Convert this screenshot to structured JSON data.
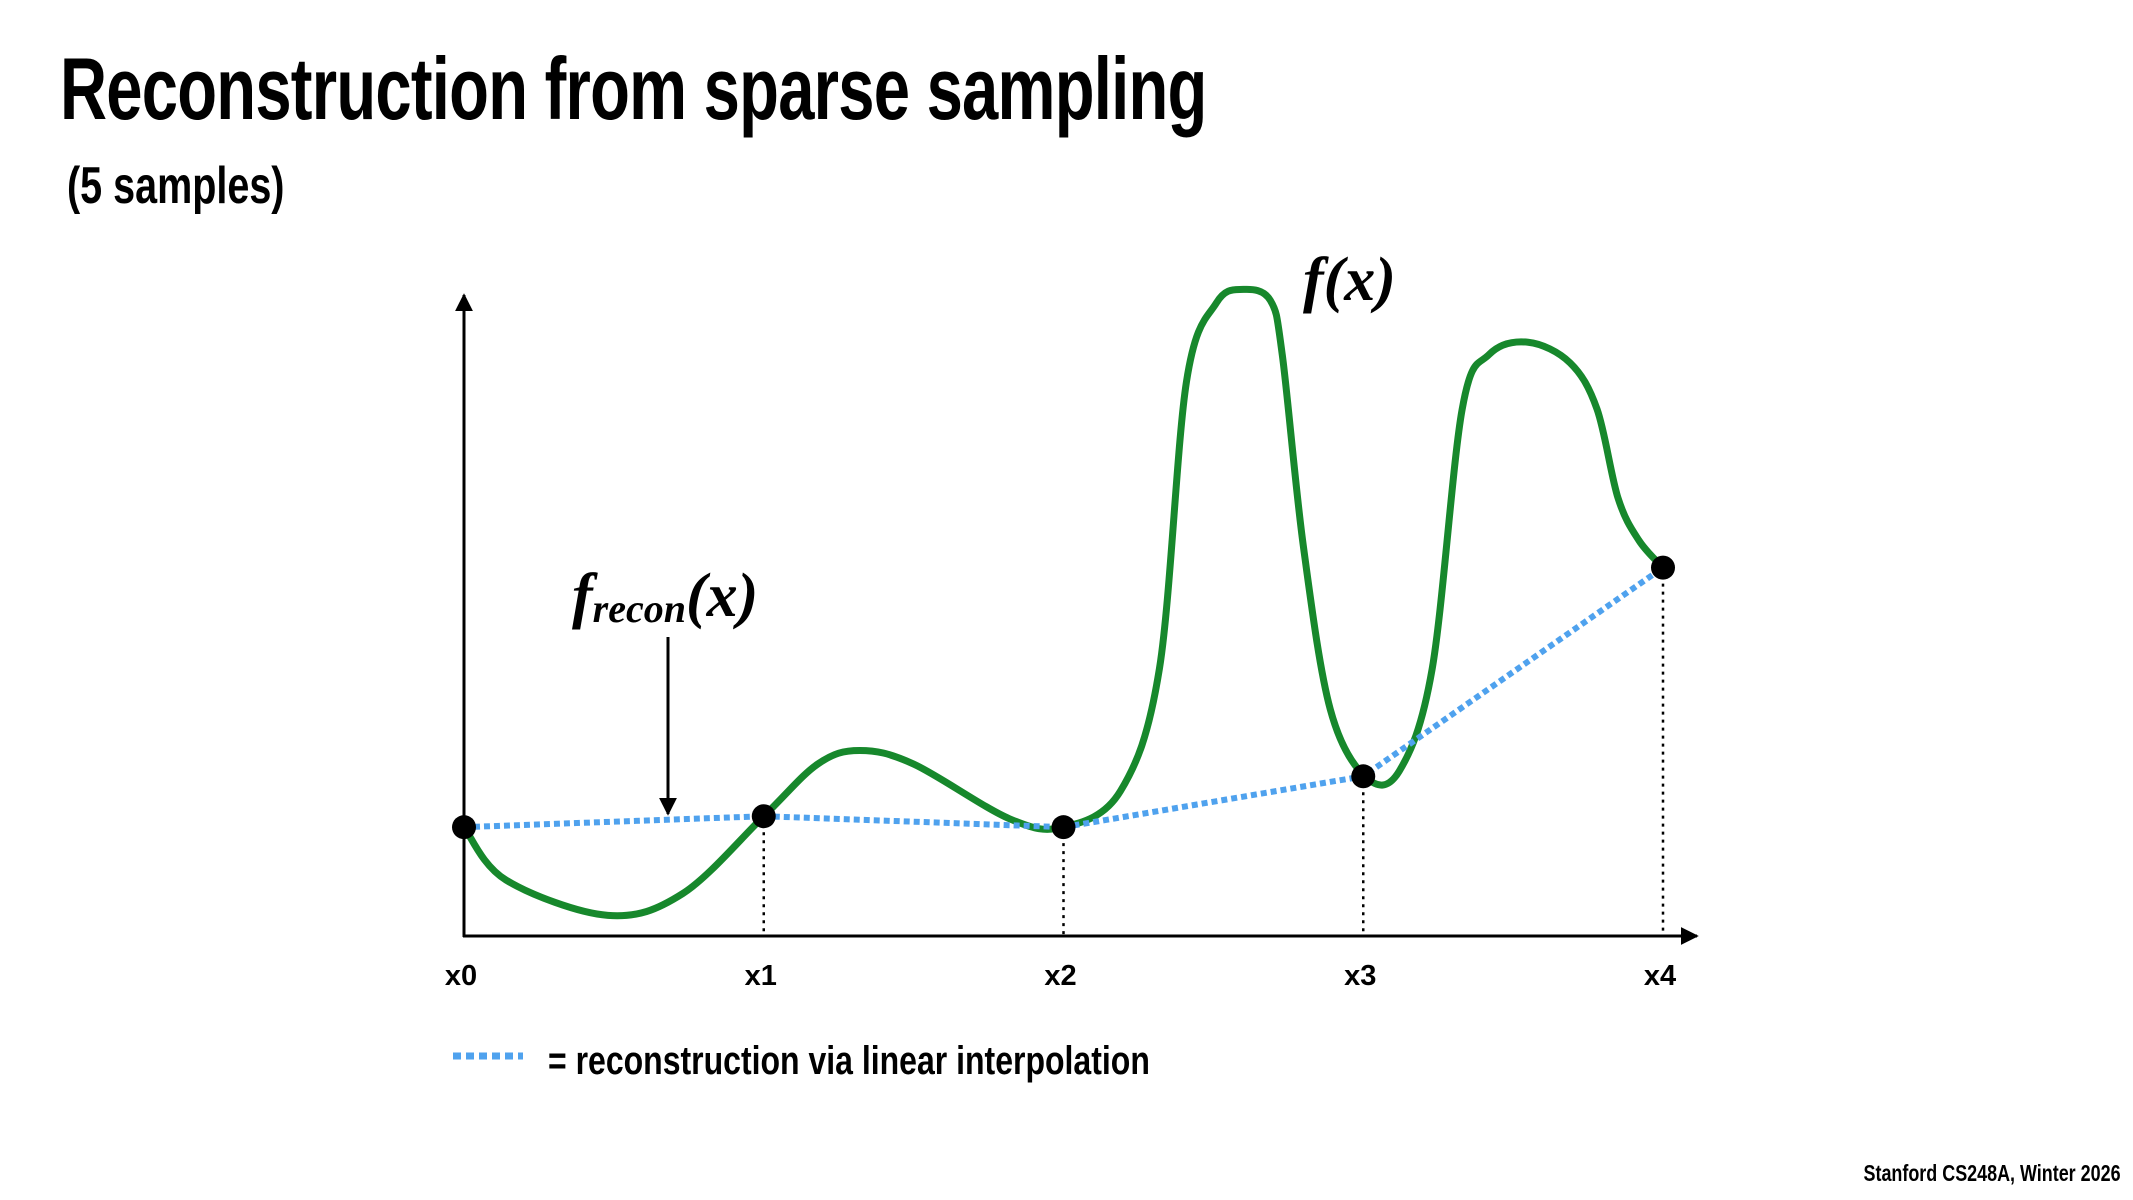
{
  "slide": {
    "title": "Reconstruction from sparse sampling",
    "subtitle": "(5 samples)",
    "footer": "Stanford CS248A, Winter 2026",
    "legend_text": "= reconstruction via linear interpolation"
  },
  "colors": {
    "signal": "#17882c",
    "reconstruction": "#4fa2ee",
    "samples": "#000000"
  },
  "chart_data": {
    "type": "line",
    "title": "",
    "xlabel": "",
    "ylabel": "",
    "grid": false,
    "tick_labels": [
      "x0",
      "x1",
      "x2",
      "x3",
      "x4"
    ],
    "xlim": [
      0,
      4
    ],
    "ylim": [
      0,
      10
    ],
    "annotations": {
      "signal_label": "f(x)",
      "recon_label_base": "f",
      "recon_label_sub": "recon",
      "recon_label_arg": "(x)"
    },
    "series": [
      {
        "key": "signal",
        "style": "solid-green",
        "x": [
          0,
          0.14,
          0.48,
          0.73,
          1,
          1.18,
          1.32,
          1.5,
          1.82,
          2,
          2.19,
          2.32,
          2.41,
          2.51,
          2.6,
          2.69,
          2.73,
          2.8,
          2.89,
          3.01,
          3.12,
          3.23,
          3.33,
          3.42,
          3.55,
          3.69,
          3.78,
          3.85,
          3.92,
          4
        ],
        "y": [
          1.69,
          0.87,
          0.32,
          0.66,
          1.86,
          2.67,
          2.88,
          2.67,
          1.82,
          1.69,
          2.25,
          4.15,
          8.6,
          9.83,
          10.04,
          9.87,
          9.02,
          6.06,
          3.52,
          2.46,
          2.56,
          4.15,
          8.18,
          9.03,
          9.22,
          8.9,
          8.18,
          6.8,
          6.14,
          5.72
        ]
      },
      {
        "key": "reconstruction",
        "style": "dotted-blue",
        "x": [
          0,
          1,
          2,
          3,
          4
        ],
        "y": [
          1.69,
          1.86,
          1.69,
          2.48,
          5.72
        ]
      }
    ],
    "samples": {
      "x": [
        0,
        1,
        2,
        3,
        4
      ],
      "y": [
        1.69,
        1.86,
        1.69,
        2.48,
        5.72
      ]
    }
  }
}
